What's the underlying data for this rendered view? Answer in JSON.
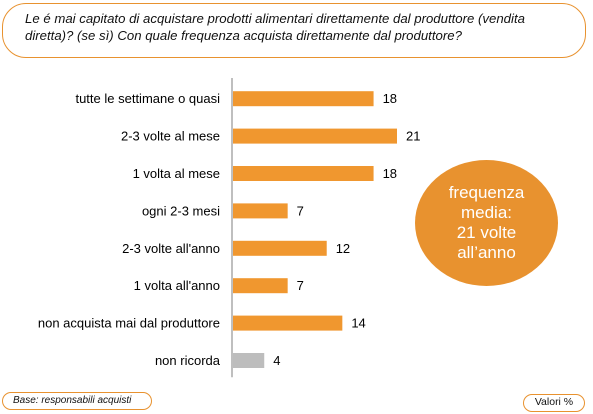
{
  "question": "Le é mai capitato di acquistare prodotti alimentari direttamente dal produttore (vendita diretta)? (se sì) Con quale frequenza acquista direttamente dal produttore?",
  "badge_text": "frequenza\nmedia:\n21 volte\nall’anno",
  "base_note": "Base: responsabili acquisti",
  "valori_note": "Valori %",
  "colors": {
    "accent": "#e8922f",
    "bar": "#f0972f",
    "bar_muted": "#bdbdbd",
    "axis": "#7f7f7f"
  },
  "chart_data": {
    "type": "bar",
    "orientation": "horizontal",
    "categories": [
      "tutte le settimane o quasi",
      "2-3 volte al mese",
      "1 volta al mese",
      "ogni 2-3 mesi",
      "2-3 volte all'anno",
      "1 volta all'anno",
      "non acquista mai dal produttore",
      "non ricorda"
    ],
    "values": [
      18,
      21,
      18,
      7,
      12,
      7,
      14,
      4
    ],
    "highlight": [
      true,
      true,
      true,
      true,
      true,
      true,
      true,
      false
    ],
    "xlim": [
      0,
      21
    ],
    "grid": false,
    "data_labels": true
  }
}
